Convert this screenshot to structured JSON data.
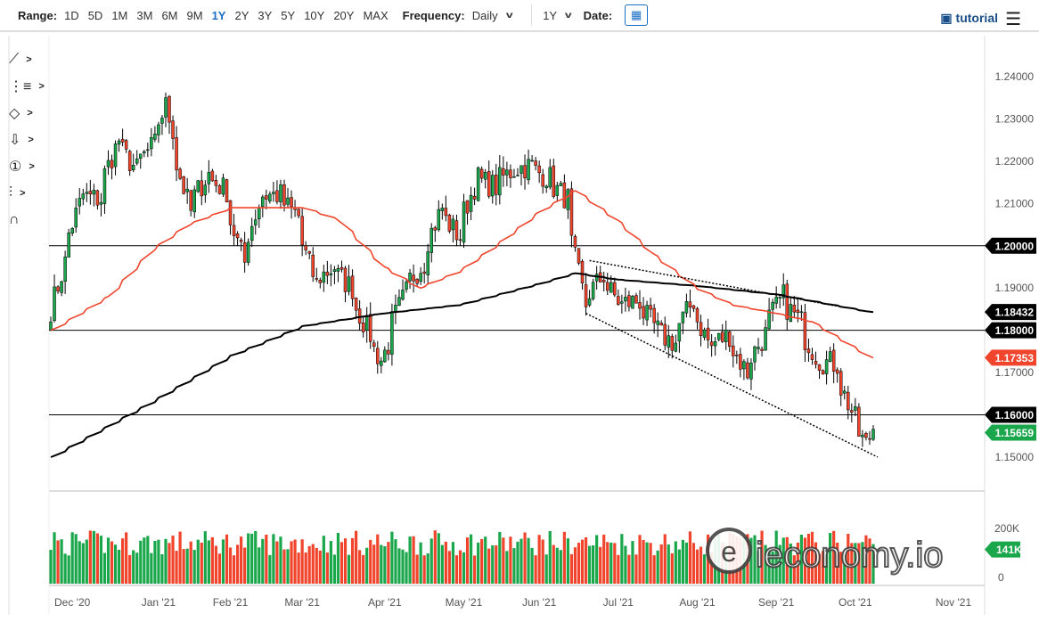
{
  "toolbar": {
    "range_label": "Range:",
    "ranges": [
      "1D",
      "5D",
      "1M",
      "3M",
      "6M",
      "9M",
      "1Y",
      "2Y",
      "3Y",
      "5Y",
      "10Y",
      "20Y",
      "MAX"
    ],
    "active_range": "1Y",
    "frequency_label": "Frequency:",
    "frequency": "Daily",
    "period": "1Y",
    "date_label": "Date:",
    "tutorial": "tutorial"
  },
  "tools": [
    "line-tool-icon",
    "fibonacci-tool-icon",
    "shape-tool-icon",
    "arrow-tool-icon",
    "annotation-number-icon",
    "measure-tool-icon",
    "magnet-icon"
  ],
  "watermark": "ieconomy.io",
  "colors": {
    "up": "#1aa64a",
    "down": "#f0452c",
    "ma50": "#f0452c",
    "ma200": "#000000",
    "grid_line": "#000000"
  },
  "chart_data": {
    "type": "candlestick",
    "ylim": [
      1.145,
      1.245
    ],
    "y_ticks": [
      "1.24000",
      "1.23000",
      "1.22000",
      "1.21000",
      "1.19000",
      "1.17000",
      "1.15000"
    ],
    "y_tick_values": [
      1.24,
      1.23,
      1.22,
      1.21,
      1.19,
      1.17,
      1.15
    ],
    "x_labels": [
      [
        "2020-12-01",
        "Dec '20"
      ],
      [
        "2021-01-04",
        "Jan '21"
      ],
      [
        "2021-02-01",
        "Feb '21"
      ],
      [
        "2021-03-01",
        "Mar '21"
      ],
      [
        "2021-04-01",
        "Apr '21"
      ],
      [
        "2021-05-03",
        "May '21"
      ],
      [
        "2021-06-01",
        "Jun '21"
      ],
      [
        "2021-07-01",
        "Jul '21"
      ],
      [
        "2021-08-02",
        "Aug '21"
      ],
      [
        "2021-09-01",
        "Sep '21"
      ],
      [
        "2021-10-01",
        "Oct '21"
      ],
      [
        "2021-11-01",
        "Nov '21"
      ]
    ],
    "start_date": "2020-11-23",
    "end_date": "2021-10-08",
    "weekly_closes": [
      [
        "2020-11-23",
        1.185
      ],
      [
        "2020-11-27",
        1.196
      ],
      [
        "2020-12-04",
        1.212
      ],
      [
        "2020-12-11",
        1.211
      ],
      [
        "2020-12-18",
        1.225
      ],
      [
        "2020-12-25",
        1.218
      ],
      [
        "2021-01-01",
        1.224
      ],
      [
        "2021-01-06",
        1.233
      ],
      [
        "2021-01-15",
        1.208
      ],
      [
        "2021-01-22",
        1.217
      ],
      [
        "2021-01-29",
        1.213
      ],
      [
        "2021-02-05",
        1.196
      ],
      [
        "2021-02-12",
        1.212
      ],
      [
        "2021-02-19",
        1.212
      ],
      [
        "2021-02-26",
        1.207
      ],
      [
        "2021-03-05",
        1.191
      ],
      [
        "2021-03-12",
        1.195
      ],
      [
        "2021-03-19",
        1.19
      ],
      [
        "2021-03-26",
        1.179
      ],
      [
        "2021-03-31",
        1.173
      ],
      [
        "2021-04-09",
        1.189
      ],
      [
        "2021-04-16",
        1.196
      ],
      [
        "2021-04-23",
        1.209
      ],
      [
        "2021-04-30",
        1.202
      ],
      [
        "2021-05-07",
        1.216
      ],
      [
        "2021-05-14",
        1.214
      ],
      [
        "2021-05-21",
        1.218
      ],
      [
        "2021-05-28",
        1.219
      ],
      [
        "2021-06-04",
        1.216
      ],
      [
        "2021-06-11",
        1.211
      ],
      [
        "2021-06-18",
        1.186
      ],
      [
        "2021-06-25",
        1.193
      ],
      [
        "2021-07-02",
        1.186
      ],
      [
        "2021-07-09",
        1.187
      ],
      [
        "2021-07-16",
        1.18
      ],
      [
        "2021-07-23",
        1.177
      ],
      [
        "2021-07-30",
        1.187
      ],
      [
        "2021-08-06",
        1.176
      ],
      [
        "2021-08-13",
        1.179
      ],
      [
        "2021-08-20",
        1.17
      ],
      [
        "2021-08-27",
        1.179
      ],
      [
        "2021-09-03",
        1.188
      ],
      [
        "2021-09-10",
        1.182
      ],
      [
        "2021-09-17",
        1.173
      ],
      [
        "2021-09-24",
        1.172
      ],
      [
        "2021-10-01",
        1.159
      ],
      [
        "2021-10-06",
        1.153
      ],
      [
        "2021-10-08",
        1.1566
      ]
    ],
    "ma50": [
      [
        "2020-11-23",
        1.18
      ],
      [
        "2020-12-15",
        1.188
      ],
      [
        "2021-01-01",
        1.199
      ],
      [
        "2021-01-15",
        1.205
      ],
      [
        "2021-02-01",
        1.209
      ],
      [
        "2021-03-01",
        1.209
      ],
      [
        "2021-03-15",
        1.206
      ],
      [
        "2021-04-01",
        1.195
      ],
      [
        "2021-04-15",
        1.19
      ],
      [
        "2021-05-01",
        1.194
      ],
      [
        "2021-05-15",
        1.2
      ],
      [
        "2021-06-01",
        1.208
      ],
      [
        "2021-06-15",
        1.213
      ],
      [
        "2021-07-01",
        1.206
      ],
      [
        "2021-07-15",
        1.198
      ],
      [
        "2021-08-01",
        1.19
      ],
      [
        "2021-08-15",
        1.186
      ],
      [
        "2021-09-01",
        1.184
      ],
      [
        "2021-09-15",
        1.182
      ],
      [
        "2021-10-08",
        1.1735
      ]
    ],
    "ma200": [
      [
        "2020-11-23",
        1.15
      ],
      [
        "2021-01-01",
        1.163
      ],
      [
        "2021-02-01",
        1.174
      ],
      [
        "2021-03-01",
        1.181
      ],
      [
        "2021-04-01",
        1.184
      ],
      [
        "2021-05-01",
        1.186
      ],
      [
        "2021-06-01",
        1.191
      ],
      [
        "2021-06-15",
        1.1935
      ],
      [
        "2021-07-01",
        1.192
      ],
      [
        "2021-08-01",
        1.1905
      ],
      [
        "2021-09-01",
        1.1885
      ],
      [
        "2021-10-08",
        1.1843
      ]
    ],
    "horizontal_lines": [
      1.2,
      1.18,
      1.16
    ],
    "trend_lines": [
      [
        [
          "2021-06-21",
          1.1965
        ],
        [
          "2021-09-24",
          1.1855
        ]
      ],
      [
        [
          "2021-06-18",
          1.184
        ],
        [
          "2021-10-08",
          1.15
        ]
      ]
    ],
    "price_labels": [
      {
        "text": "1.20000",
        "value": 1.2,
        "color": "#000000"
      },
      {
        "text": "1.18432",
        "value": 1.18432,
        "color": "#000000"
      },
      {
        "text": "1.18000",
        "value": 1.18,
        "color": "#000000"
      },
      {
        "text": "1.17353",
        "value": 1.17353,
        "color": "#f0452c"
      },
      {
        "text": "1.16000",
        "value": 1.16,
        "color": "#000000"
      },
      {
        "text": "1.15659",
        "value": 1.15659,
        "color": "#1aa64a"
      }
    ],
    "volume": {
      "tick": "200K",
      "tick_value": 200000,
      "last_label": "141K",
      "last_value": 141000,
      "zero_label": "0"
    }
  }
}
